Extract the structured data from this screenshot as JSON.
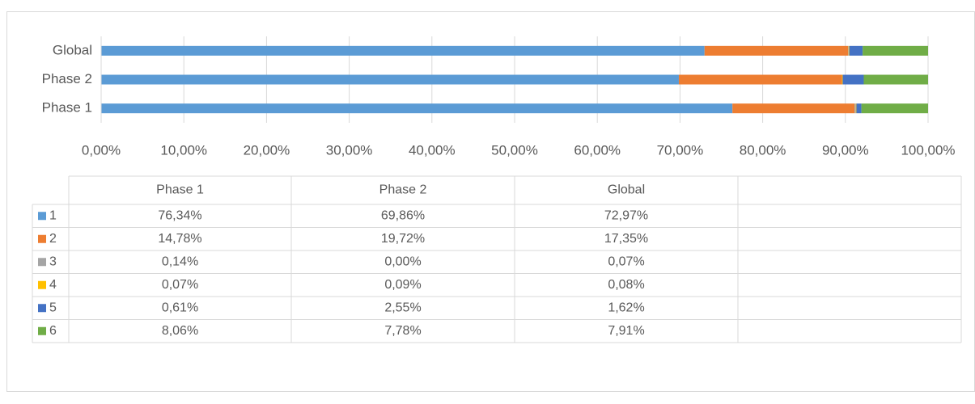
{
  "chart_data": {
    "type": "stacked-bar-horizontal",
    "categories": [
      "Phase 1",
      "Phase 2",
      "Global"
    ],
    "series": [
      {
        "name": "1",
        "color": "#5b9bd5",
        "values": [
          76.34,
          69.86,
          72.97
        ],
        "value_labels": [
          "76,34%",
          "69,86%",
          "72,97%"
        ]
      },
      {
        "name": "2",
        "color": "#ed7d31",
        "values": [
          14.78,
          19.72,
          17.35
        ],
        "value_labels": [
          "14,78%",
          "19,72%",
          "17,35%"
        ]
      },
      {
        "name": "3",
        "color": "#a5a5a5",
        "values": [
          0.14,
          0.0,
          0.07
        ],
        "value_labels": [
          "0,14%",
          "0,00%",
          "0,07%"
        ]
      },
      {
        "name": "4",
        "color": "#ffc000",
        "values": [
          0.07,
          0.09,
          0.08
        ],
        "value_labels": [
          "0,07%",
          "0,09%",
          "0,08%"
        ]
      },
      {
        "name": "5",
        "color": "#4472c4",
        "values": [
          0.61,
          2.55,
          1.62
        ],
        "value_labels": [
          "0,61%",
          "2,55%",
          "1,62%"
        ]
      },
      {
        "name": "6",
        "color": "#70ad47",
        "values": [
          8.06,
          7.78,
          7.91
        ],
        "value_labels": [
          "8,06%",
          "7,78%",
          "7,91%"
        ]
      }
    ],
    "xlim": [
      0,
      100
    ],
    "xticks": [
      {
        "value": 0,
        "label": "0,00%"
      },
      {
        "value": 10,
        "label": "10,00%"
      },
      {
        "value": 20,
        "label": "20,00%"
      },
      {
        "value": 30,
        "label": "30,00%"
      },
      {
        "value": 40,
        "label": "40,00%"
      },
      {
        "value": 50,
        "label": "50,00%"
      },
      {
        "value": 60,
        "label": "60,00%"
      },
      {
        "value": 70,
        "label": "70,00%"
      },
      {
        "value": 80,
        "label": "80,00%"
      },
      {
        "value": 90,
        "label": "90,00%"
      },
      {
        "value": 100,
        "label": "100,00%"
      }
    ],
    "grid": true,
    "data_table": true
  }
}
